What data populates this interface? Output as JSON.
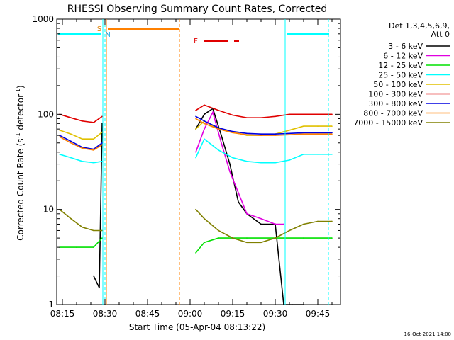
{
  "chart_data": {
    "type": "line",
    "title": "RHESSI Observing Summary Count Rates, Corrected",
    "xlabel": "Start Time (05-Apr-04 08:13:22)",
    "ylabel": "Corrected Count Rate (s",
    "ylabel_sup": "-1",
    "ylabel_tail": " detector",
    "ylabel_sup2": "-1",
    "ylabel_end": ")",
    "y_scale": "log",
    "ylim": [
      1,
      1000
    ],
    "xlim": [
      "08:13",
      "09:53"
    ],
    "x_ticks": [
      "08:15",
      "08:30",
      "08:45",
      "09:00",
      "09:15",
      "09:30",
      "09:45"
    ],
    "y_ticks": [
      "1",
      "10",
      "100",
      "1000"
    ],
    "legend_header": [
      "Det 1,3,4,5,6,9,",
      "Att 0"
    ],
    "legend_placement": "right",
    "footer_date": "16-Oct-2021 14:00",
    "annotations": [
      {
        "label": "S",
        "x": "08:29",
        "color": "#e08000"
      },
      {
        "label": "N",
        "x": "08:31",
        "color": "#00a0e0"
      },
      {
        "label": "F",
        "x": "09:06",
        "color": "#e00000"
      }
    ],
    "series": [
      {
        "name": "3 - 6 keV",
        "color": "#000000",
        "x": [
          "08:14",
          "08:20",
          "08:26",
          "08:28",
          "08:29",
          "08:59",
          "09:02",
          "09:05",
          "09:08",
          "09:11",
          "09:14",
          "09:17",
          "09:20",
          "09:25",
          "09:30",
          "09:33",
          "09:36",
          "09:40"
        ],
        "y": [
          null,
          null,
          2,
          1.5,
          80,
          null,
          70,
          100,
          115,
          60,
          30,
          12,
          9,
          7,
          7,
          1,
          1,
          1
        ]
      },
      {
        "name": "6 - 12 keV",
        "color": "#e000e0",
        "x": [
          "08:59",
          "09:02",
          "09:05",
          "09:08",
          "09:11",
          "09:14",
          "09:17",
          "09:20",
          "09:25",
          "09:30",
          "09:33"
        ],
        "y": [
          null,
          40,
          70,
          105,
          50,
          25,
          15,
          9,
          8,
          7,
          7
        ]
      },
      {
        "name": "12 - 25 keV",
        "color": "#00e000",
        "x": [
          "08:14",
          "08:20",
          "08:26",
          "08:29",
          "08:59",
          "09:02",
          "09:05",
          "09:10",
          "09:20",
          "09:30",
          "09:40",
          "09:50"
        ],
        "y": [
          4,
          4,
          4,
          5,
          null,
          3.5,
          4.5,
          5,
          5,
          5,
          5,
          5
        ]
      },
      {
        "name": "25 - 50 keV",
        "color": "#00ffff",
        "x": [
          "08:14",
          "08:18",
          "08:22",
          "08:26",
          "08:29",
          "08:59",
          "09:02",
          "09:05",
          "09:10",
          "09:15",
          "09:20",
          "09:25",
          "09:30",
          "09:35",
          "09:40",
          "09:45",
          "09:50"
        ],
        "y": [
          38,
          35,
          32,
          31,
          32,
          null,
          35,
          55,
          42,
          35,
          32,
          31,
          31,
          33,
          38,
          38,
          38
        ]
      },
      {
        "name": "50 - 100 keV",
        "color": "#e0c000",
        "x": [
          "08:14",
          "08:18",
          "08:22",
          "08:26",
          "08:29",
          "08:59",
          "09:02",
          "09:05",
          "09:10",
          "09:15",
          "09:20",
          "09:25",
          "09:30",
          "09:35",
          "09:40",
          "09:45",
          "09:50"
        ],
        "y": [
          68,
          62,
          55,
          55,
          65,
          null,
          70,
          85,
          70,
          65,
          60,
          60,
          62,
          68,
          75,
          75,
          75
        ]
      },
      {
        "name": "100 - 300 keV",
        "color": "#e00000",
        "x": [
          "08:14",
          "08:18",
          "08:22",
          "08:26",
          "08:29",
          "08:59",
          "09:02",
          "09:05",
          "09:10",
          "09:15",
          "09:20",
          "09:25",
          "09:30",
          "09:35",
          "09:40",
          "09:45",
          "09:50"
        ],
        "y": [
          100,
          92,
          85,
          82,
          95,
          null,
          110,
          125,
          110,
          98,
          92,
          92,
          95,
          100,
          100,
          100,
          100
        ]
      },
      {
        "name": "300 - 800 keV",
        "color": "#0000e0",
        "x": [
          "08:14",
          "08:18",
          "08:22",
          "08:26",
          "08:29",
          "08:59",
          "09:02",
          "09:05",
          "09:10",
          "09:15",
          "09:20",
          "09:25",
          "09:30",
          "09:35",
          "09:40",
          "09:45",
          "09:50"
        ],
        "y": [
          60,
          52,
          45,
          43,
          50,
          null,
          95,
          85,
          72,
          66,
          63,
          62,
          62,
          63,
          64,
          64,
          64
        ]
      },
      {
        "name": "800 - 7000 keV",
        "color": "#ff8000",
        "x": [
          "08:14",
          "08:18",
          "08:22",
          "08:26",
          "08:29",
          "08:59",
          "09:02",
          "09:05",
          "09:10",
          "09:15",
          "09:20",
          "09:25",
          "09:30",
          "09:35",
          "09:40",
          "09:45",
          "09:50"
        ],
        "y": [
          58,
          50,
          44,
          42,
          48,
          null,
          90,
          80,
          70,
          64,
          61,
          60,
          60,
          61,
          62,
          62,
          62
        ]
      },
      {
        "name": "7000 - 15000 keV",
        "color": "#808000",
        "x": [
          "08:14",
          "08:18",
          "08:22",
          "08:26",
          "08:29",
          "08:59",
          "09:02",
          "09:05",
          "09:10",
          "09:15",
          "09:20",
          "09:25",
          "09:30",
          "09:35",
          "09:40",
          "09:45",
          "09:50"
        ],
        "y": [
          10,
          8,
          6.5,
          6,
          6,
          null,
          10,
          8,
          6,
          5,
          4.5,
          4.5,
          5,
          6,
          7,
          7.5,
          7.5
        ]
      }
    ]
  }
}
